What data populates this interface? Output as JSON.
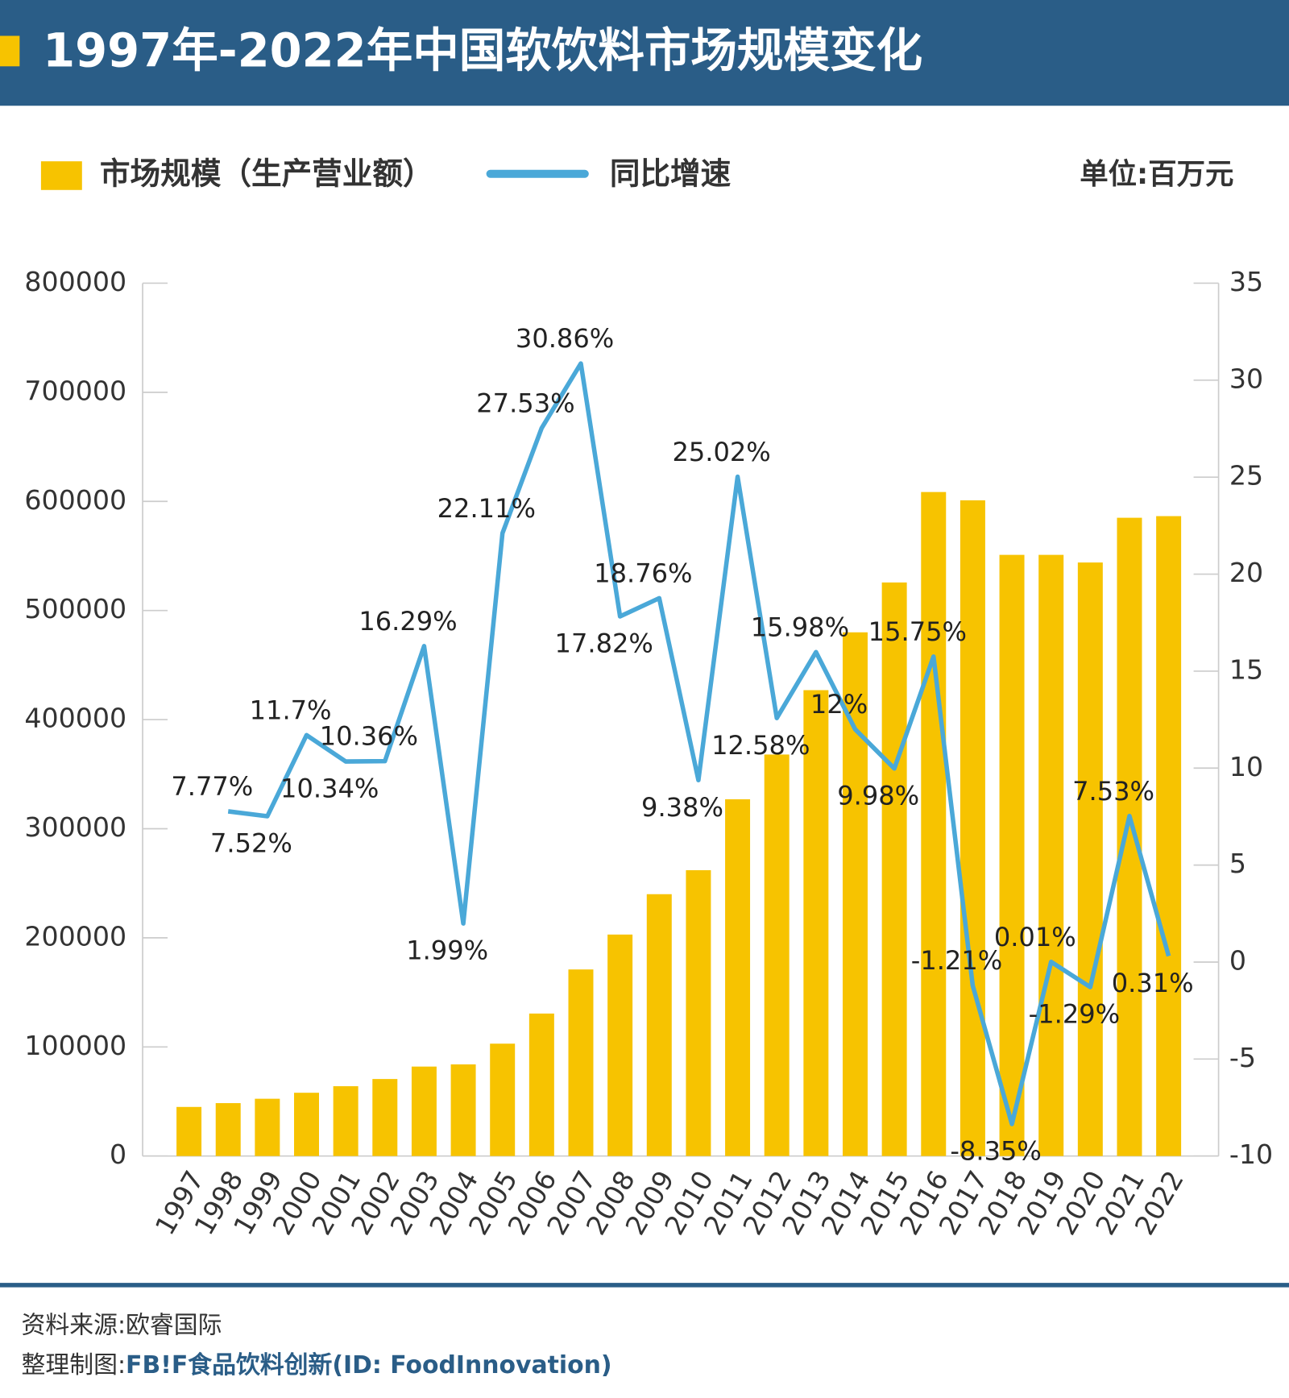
{
  "chart_data": {
    "type": "bar_line",
    "title": "1997年-2022年中国软饮料市场规模变化",
    "unit_label": "单位:百万元",
    "source": "资料来源:欧睿国际",
    "credit_prefix": "整理制图:",
    "credit_brand": "FB!F食品饮料创新(ID: FoodInnovation)",
    "categories": [
      "1997",
      "1998",
      "1999",
      "2000",
      "2001",
      "2002",
      "2003",
      "2004",
      "2005",
      "2006",
      "2007",
      "2008",
      "2009",
      "2010",
      "2011",
      "2012",
      "2013",
      "2014",
      "2015",
      "2016",
      "2017",
      "2018",
      "2019",
      "2020",
      "2021",
      "2022"
    ],
    "series": [
      {
        "name": "市场规模（生产营业额）",
        "type": "bar",
        "color": "#f7c300",
        "values": [
          45000,
          48500,
          52500,
          58000,
          64000,
          70600,
          82000,
          84000,
          103000,
          130600,
          171000,
          203000,
          240000,
          262000,
          327000,
          368000,
          427000,
          480000,
          525700,
          608600,
          601000,
          551000,
          551000,
          544000,
          585000,
          586500
        ]
      },
      {
        "name": "同比增速",
        "type": "line",
        "axis": "y2",
        "color": "#4aa8d8",
        "values": [
          null,
          7.77,
          7.52,
          11.7,
          10.34,
          10.36,
          16.29,
          1.99,
          22.11,
          27.53,
          30.86,
          17.82,
          18.76,
          9.38,
          25.02,
          12.58,
          15.98,
          12,
          9.98,
          15.75,
          -1.21,
          -8.35,
          0.01,
          -1.29,
          7.53,
          0.31
        ],
        "value_labels": [
          null,
          "7.77%",
          "7.52%",
          "11.7%",
          "10.34%",
          "10.36%",
          "16.29%",
          "1.99%",
          "22.11%",
          "27.53%",
          "30.86%",
          "17.82%",
          "18.76%",
          "9.38%",
          "25.02%",
          "12.58%",
          "15.98%",
          "12%",
          "9.98%",
          "15.75%",
          "-1.21%",
          "-8.35%",
          "0.01%",
          "-1.29%",
          "7.53%",
          "0.31%"
        ]
      }
    ],
    "ylim": [
      0,
      800000
    ],
    "yticks": [
      0,
      100000,
      200000,
      300000,
      400000,
      500000,
      600000,
      700000,
      800000
    ],
    "y2lim": [
      -10,
      35
    ],
    "y2ticks": [
      -10,
      -5,
      0,
      5,
      10,
      15,
      20,
      25,
      30,
      35
    ]
  }
}
